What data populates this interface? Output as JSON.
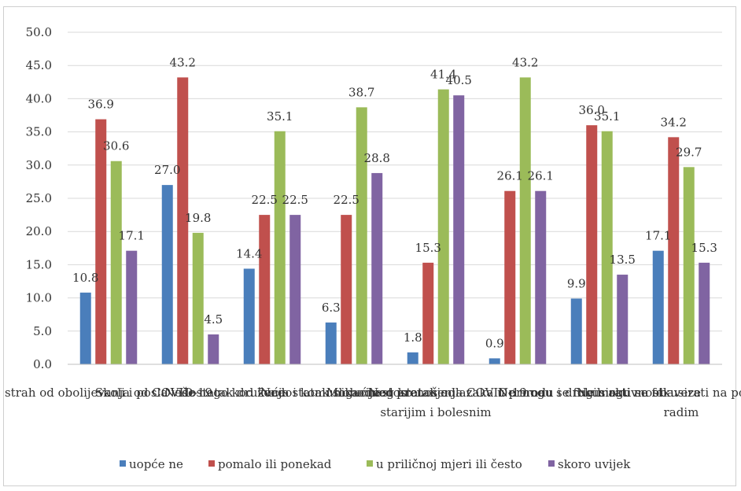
{
  "chart_data": {
    "type": "bar",
    "categories": [
      [
        "strah od obolijevanja od COVID-19"
      ],
      [
        "Skoli i posla više nego kod kuće"
      ],
      [
        "Nedostatak druženja i komunikacije"
      ],
      [
        "Nedostatak slobodnog kretanja"
      ],
      [
        "Mogućnost prenošenja COVID-19 na",
        "starijim i bolesnim"
      ],
      [
        "Nedostatak odlazaka u prirodu i drugih aktivnosti"
      ],
      [
        "Ne mogu se fokusirati na obaveze"
      ],
      [
        "Ne mogu se fokusirati na posao jer",
        "radim"
      ]
    ],
    "series": [
      {
        "name": "uopće ne",
        "color": "#4a7ebb",
        "values": [
          10.8,
          27.0,
          14.4,
          6.3,
          1.8,
          0.9,
          9.9,
          17.1
        ]
      },
      {
        "name": "pomalo ili ponekad",
        "color": "#c0504d",
        "values": [
          36.9,
          43.2,
          22.5,
          22.5,
          15.3,
          26.1,
          36.0,
          34.2
        ]
      },
      {
        "name": "u priličnoj mjeri ili često",
        "color": "#9bbb59",
        "values": [
          30.6,
          19.8,
          35.1,
          38.7,
          41.4,
          43.2,
          35.1,
          29.7
        ]
      },
      {
        "name": "skoro uvijek",
        "color": "#8064a2",
        "values": [
          17.1,
          4.5,
          22.5,
          28.8,
          40.5,
          26.1,
          13.5,
          15.3
        ]
      }
    ],
    "yticks": [
      "0.0",
      "5.0",
      "10.0",
      "15.0",
      "20.0",
      "25.0",
      "30.0",
      "35.0",
      "40.0",
      "45.0",
      "50.0"
    ],
    "ylim": [
      0,
      50
    ],
    "grid": true,
    "legend_position": "bottom"
  }
}
